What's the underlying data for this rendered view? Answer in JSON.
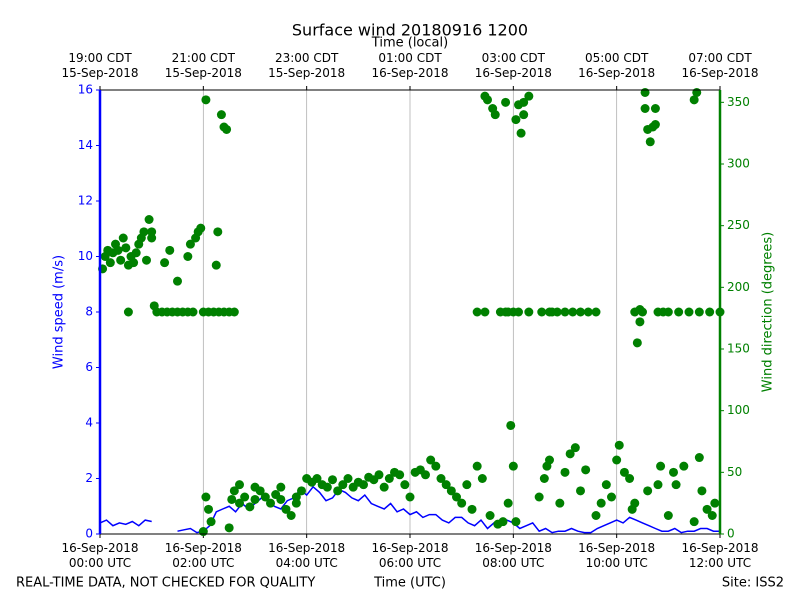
{
  "chart_data": {
    "type": "line",
    "title": "Surface wind 20180916 1200",
    "x2label": "Time (local)",
    "xlabel": "Time (UTC)",
    "ylabel": "Wind speed (m/s)",
    "y2label": "Wind direction (degrees)",
    "footnote": "REAL-TIME DATA, NOT CHECKED FOR QUALITY",
    "site": "Site: ISS2",
    "ycolor": "#0000ff",
    "y2color": "#008000",
    "grid": "x",
    "xlim": [
      0,
      12
    ],
    "xticks": [
      {
        "value": 0,
        "label": "16-Sep-2018\n00:00 UTC"
      },
      {
        "value": 2,
        "label": "16-Sep-2018\n02:00 UTC"
      },
      {
        "value": 4,
        "label": "16-Sep-2018\n04:00 UTC"
      },
      {
        "value": 6,
        "label": "16-Sep-2018\n06:00 UTC"
      },
      {
        "value": 8,
        "label": "16-Sep-2018\n08:00 UTC"
      },
      {
        "value": 10,
        "label": "16-Sep-2018\n10:00 UTC"
      },
      {
        "value": 12,
        "label": "16-Sep-2018\n12:00 UTC"
      }
    ],
    "x2ticks": [
      {
        "value": 0,
        "label": "19:00 CDT\n15-Sep-2018"
      },
      {
        "value": 2,
        "label": "21:00 CDT\n15-Sep-2018"
      },
      {
        "value": 4,
        "label": "23:00 CDT\n15-Sep-2018"
      },
      {
        "value": 6,
        "label": "01:00 CDT\n16-Sep-2018"
      },
      {
        "value": 8,
        "label": "03:00 CDT\n16-Sep-2018"
      },
      {
        "value": 10,
        "label": "05:00 CDT\n16-Sep-2018"
      },
      {
        "value": 12,
        "label": "07:00 CDT\n16-Sep-2018"
      }
    ],
    "ylim": [
      0,
      16
    ],
    "yticks": [
      0,
      2,
      4,
      6,
      8,
      10,
      12,
      14,
      16
    ],
    "y2lim": [
      0,
      360
    ],
    "y2ticks": [
      0,
      50,
      100,
      150,
      200,
      250,
      300,
      350
    ],
    "series": [
      {
        "type": "line",
        "color": "#0000ff",
        "x": [
          0,
          0.125,
          0.25,
          0.375,
          0.5,
          0.625,
          0.75,
          0.875,
          1.0,
          1.25,
          1.5,
          1.625,
          1.75,
          1.875,
          2.0,
          2.125,
          2.25,
          2.375,
          2.5,
          2.625,
          2.75,
          2.875,
          3.0,
          3.125,
          3.25,
          3.375,
          3.5,
          3.625,
          3.75,
          3.875,
          4.0,
          4.125,
          4.25,
          4.375,
          4.5,
          4.625,
          4.75,
          4.875,
          5.0,
          5.125,
          5.25,
          5.375,
          5.5,
          5.625,
          5.75,
          5.875,
          6.0,
          6.125,
          6.25,
          6.375,
          6.5,
          6.625,
          6.75,
          6.875,
          7.0,
          7.125,
          7.25,
          7.375,
          7.5,
          7.625,
          7.75,
          7.875,
          8.0,
          8.125,
          8.25,
          8.375,
          8.5,
          8.625,
          8.75,
          8.875,
          9.0,
          9.125,
          9.25,
          9.375,
          9.5,
          9.625,
          9.75,
          9.875,
          10.0,
          10.125,
          10.25,
          10.375,
          10.5,
          10.625,
          10.75,
          10.875,
          11.0,
          11.125,
          11.25,
          11.375,
          11.5,
          11.625,
          11.75,
          11.875,
          12.0
        ],
        "values": [
          0.4,
          0.5,
          0.3,
          0.4,
          0.35,
          0.45,
          0.3,
          0.5,
          0.45,
          null,
          0.1,
          0.15,
          0.2,
          0.05,
          0.1,
          0.3,
          0.8,
          0.9,
          1.0,
          0.8,
          1.1,
          0.9,
          1.1,
          1.3,
          1.2,
          1.0,
          0.9,
          1.2,
          1.3,
          1.6,
          1.4,
          1.7,
          1.5,
          1.2,
          1.3,
          1.6,
          1.5,
          1.3,
          1.2,
          1.4,
          1.1,
          1.0,
          0.9,
          1.1,
          0.8,
          0.9,
          0.7,
          0.8,
          0.6,
          0.7,
          0.7,
          0.5,
          0.4,
          0.6,
          0.6,
          0.4,
          0.3,
          0.5,
          0.2,
          0.4,
          0.3,
          0.5,
          0.4,
          0.2,
          0.3,
          0.4,
          0.1,
          0.2,
          0.05,
          0.1,
          0.1,
          0.2,
          0.1,
          0.05,
          0.05,
          0.2,
          0.3,
          0.4,
          0.5,
          0.4,
          0.6,
          0.5,
          0.4,
          0.3,
          0.2,
          0.1,
          0.1,
          0.2,
          0.05,
          0.1,
          0.1,
          0.2,
          0.2,
          0.1,
          0.1
        ]
      },
      {
        "type": "scatter",
        "axis": "y2",
        "color": "#008000",
        "x": [
          0.05,
          0.1,
          0.15,
          0.2,
          0.25,
          0.3,
          0.35,
          0.4,
          0.45,
          0.5,
          0.55,
          0.6,
          0.65,
          0.7,
          0.75,
          0.8,
          0.85,
          0.9,
          0.95,
          1.0,
          1.0,
          0.55,
          1.05,
          1.1,
          1.2,
          1.3,
          1.4,
          1.5,
          1.6,
          1.7,
          1.8,
          1.25,
          1.35,
          1.5,
          1.7,
          1.75,
          1.85,
          1.9,
          1.95,
          2.0,
          2.05,
          2.1,
          2.2,
          2.3,
          2.4,
          2.5,
          2.6,
          2.25,
          2.28,
          2.35,
          2.4,
          2.45,
          2.0,
          2.05,
          2.1,
          2.15,
          2.5,
          2.55,
          2.6,
          2.7,
          2.8,
          2.9,
          3.0,
          3.1,
          3.2,
          3.3,
          3.4,
          3.5,
          3.6,
          3.7,
          3.8,
          3.9,
          4.0,
          2.7,
          3.0,
          3.5,
          3.8,
          4.1,
          4.2,
          4.3,
          4.4,
          4.5,
          4.6,
          4.7,
          4.8,
          4.9,
          5.0,
          5.1,
          5.2,
          5.3,
          5.4,
          5.5,
          5.6,
          5.7,
          5.8,
          5.9,
          6.0,
          6.1,
          6.2,
          6.3,
          6.4,
          6.5,
          6.6,
          6.7,
          6.8,
          6.9,
          7.0,
          7.1,
          7.2,
          7.3,
          7.4,
          7.3,
          7.45,
          7.45,
          7.5,
          7.6,
          7.65,
          7.55,
          7.7,
          7.8,
          7.75,
          7.85,
          7.9,
          8.0,
          8.1,
          7.9,
          7.95,
          8.0,
          8.05,
          7.85,
          8.1,
          8.05,
          8.15,
          8.2,
          8.2,
          8.3,
          8.3,
          8.55,
          8.7,
          8.75,
          8.85,
          9.0,
          9.15,
          9.3,
          9.45,
          9.6,
          8.5,
          8.6,
          8.65,
          8.7,
          8.9,
          9.0,
          9.1,
          9.2,
          9.3,
          9.4,
          9.6,
          9.7,
          9.8,
          9.9,
          10.0,
          10.05,
          10.15,
          10.25,
          10.3,
          10.35,
          10.35,
          10.4,
          10.45,
          10.45,
          10.5,
          10.55,
          10.55,
          10.6,
          10.65,
          10.7,
          10.75,
          10.75,
          10.8,
          10.9,
          11.0,
          11.2,
          11.4,
          11.6,
          11.8,
          12.0,
          10.6,
          10.8,
          10.85,
          11.0,
          11.1,
          11.15,
          11.3,
          11.5,
          11.6,
          11.65,
          11.75,
          11.85,
          11.9,
          11.5,
          11.55
        ],
        "values": [
          215,
          225,
          230,
          220,
          228,
          235,
          230,
          222,
          240,
          232,
          218,
          225,
          220,
          228,
          235,
          240,
          245,
          222,
          255,
          240,
          245,
          180,
          185,
          180,
          180,
          180,
          180,
          180,
          180,
          180,
          180,
          220,
          230,
          205,
          225,
          235,
          240,
          245,
          248,
          180,
          352,
          180,
          180,
          180,
          180,
          180,
          180,
          218,
          245,
          340,
          330,
          328,
          2,
          30,
          20,
          10,
          5,
          28,
          35,
          25,
          30,
          22,
          28,
          35,
          30,
          25,
          32,
          28,
          20,
          15,
          25,
          35,
          45,
          40,
          38,
          38,
          30,
          42,
          45,
          40,
          38,
          44,
          35,
          40,
          45,
          38,
          42,
          40,
          46,
          44,
          48,
          38,
          45,
          50,
          48,
          40,
          30,
          50,
          52,
          48,
          60,
          55,
          45,
          40,
          35,
          30,
          25,
          40,
          20,
          55,
          45,
          180,
          180,
          355,
          352,
          345,
          340,
          15,
          8,
          10,
          180,
          180,
          180,
          180,
          180,
          25,
          88,
          55,
          10,
          350,
          348,
          336,
          325,
          340,
          350,
          355,
          180,
          180,
          180,
          180,
          180,
          180,
          180,
          180,
          180,
          180,
          30,
          45,
          55,
          60,
          25,
          50,
          65,
          70,
          35,
          52,
          15,
          25,
          40,
          30,
          60,
          72,
          50,
          45,
          20,
          25,
          180,
          155,
          172,
          182,
          180,
          358,
          345,
          328,
          318,
          330,
          332,
          345,
          180,
          180,
          180,
          180,
          180,
          180,
          180,
          180,
          35,
          40,
          55,
          15,
          50,
          40,
          55,
          10,
          62,
          35,
          20,
          15,
          25,
          352,
          358
        ]
      }
    ]
  }
}
